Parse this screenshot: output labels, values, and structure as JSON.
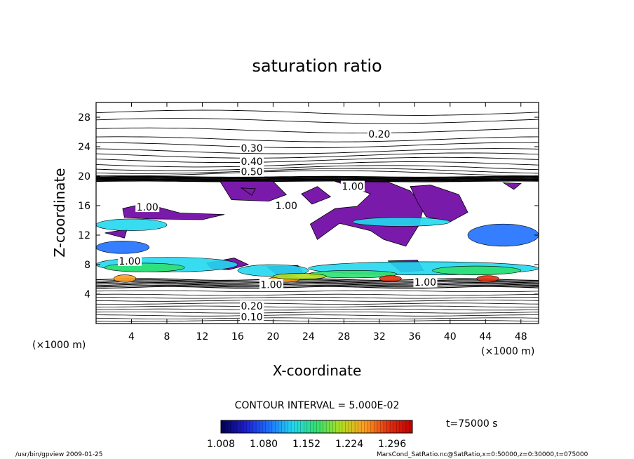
{
  "chart_data": {
    "type": "heatmap",
    "title": "saturation ratio",
    "xlabel": "X-coordinate",
    "ylabel": "Z-coordinate",
    "x_unit": "(×1000 m)",
    "x_unit_right": "(×1000 m)",
    "xlim": [
      0,
      50
    ],
    "ylim": [
      0,
      30
    ],
    "x_ticks": [
      "4",
      "8",
      "12",
      "16",
      "20",
      "24",
      "28",
      "32",
      "36",
      "40",
      "44",
      "48"
    ],
    "y_ticks": [
      "4",
      "8",
      "12",
      "16",
      "20",
      "24",
      "28"
    ],
    "contour_labels": [
      {
        "text": "0.20",
        "x": 32,
        "z": 25.7
      },
      {
        "text": "0.30",
        "x": 17.6,
        "z": 23.8
      },
      {
        "text": "0.40",
        "x": 17.6,
        "z": 22.0
      },
      {
        "text": "0.50",
        "x": 17.6,
        "z": 20.6
      },
      {
        "text": "1.00",
        "x": 29.0,
        "z": 18.6
      },
      {
        "text": "1.00",
        "x": 5.8,
        "z": 15.8
      },
      {
        "text": "1.00",
        "x": 21.5,
        "z": 16.0
      },
      {
        "text": "1.00",
        "x": 3.8,
        "z": 8.5
      },
      {
        "text": "1.00",
        "x": 37.2,
        "z": 5.6
      },
      {
        "text": "1.00",
        "x": 19.8,
        "z": 5.3
      },
      {
        "text": "0.20",
        "x": 17.6,
        "z": 2.4
      },
      {
        "text": "0.10",
        "x": 17.6,
        "z": 0.9
      }
    ],
    "contour_interval": "CONTOUR INTERVAL = 5.000E-02",
    "time_label": "t=75000 s",
    "colorbar_ticks": [
      "1.008",
      "1.080",
      "1.152",
      "1.224",
      "1.296"
    ],
    "colorbar_colors": [
      "#000050",
      "#1c1cd0",
      "#1e70ff",
      "#22d8f0",
      "#30e070",
      "#b0e020",
      "#ff9d20",
      "#e23010",
      "#c00000"
    ],
    "supersat_color": "#7a1aaa",
    "cloud_color": "#7a1aaa"
  },
  "footer": {
    "left": "/usr/bin/gpview   2009-01-25",
    "right": "MarsCond_SatRatio.nc@SatRatio,x=0:50000,z=0:30000,t=075000"
  }
}
